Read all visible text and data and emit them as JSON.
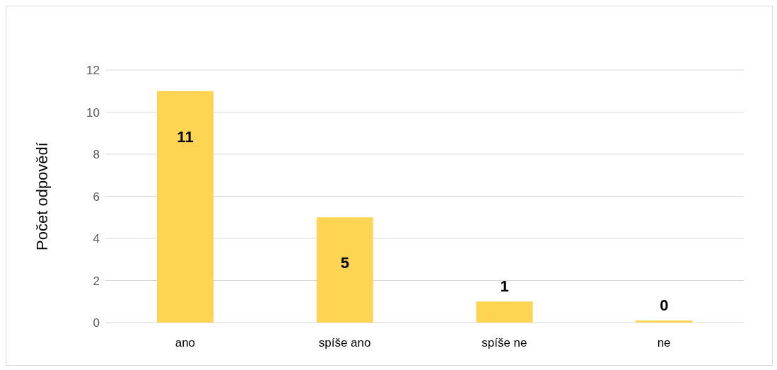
{
  "chart_data": {
    "type": "bar",
    "ylabel": "Počet odpovědí",
    "categories": [
      "ano",
      "spíše ano",
      "spíše ne",
      "ne"
    ],
    "values": [
      11,
      5,
      1,
      0
    ],
    "color": "#fdd552",
    "ylim": [
      0,
      12
    ],
    "yticks": [
      0,
      2,
      4,
      6,
      8,
      10,
      12
    ],
    "grid": "y",
    "data_labels": true
  }
}
